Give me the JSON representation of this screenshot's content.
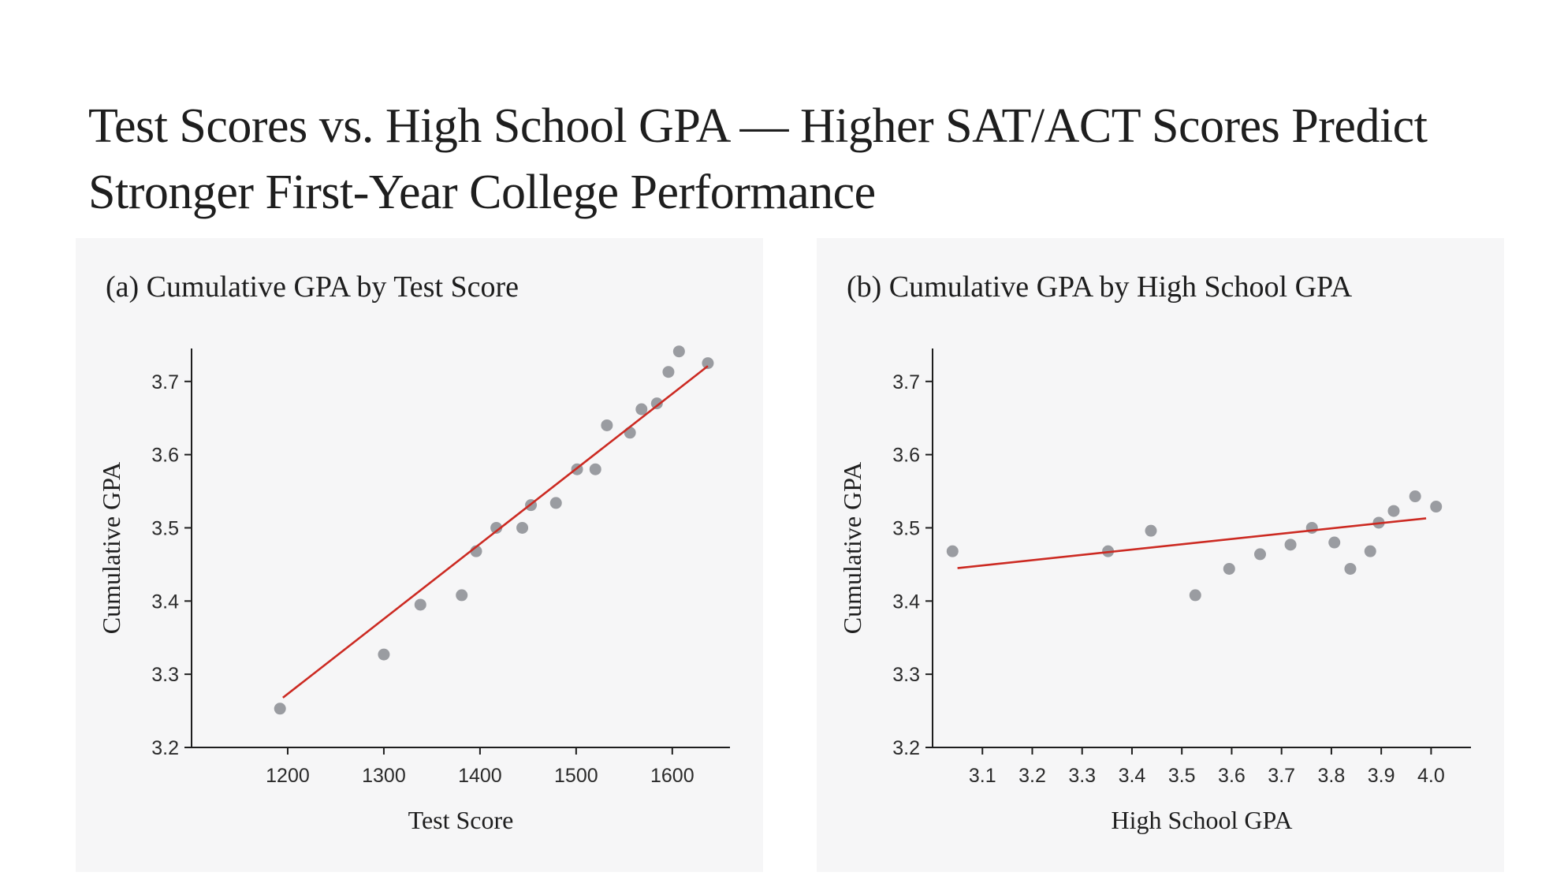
{
  "title": "Test Scores vs. High School GPA — Higher SAT/ACT Scores Predict Stronger First-Year College Performance",
  "colors": {
    "point": "#9a9ca1",
    "fit_line": "#cc2a22",
    "axis": "#1e1e1e",
    "panel_bg": "#f6f6f7"
  },
  "chart_data": [
    {
      "type": "scatter",
      "title": "(a) Cumulative GPA by Test Score",
      "xlabel": "Test Score",
      "ylabel": "Cumulative GPA",
      "xlim": [
        1100,
        1660
      ],
      "ylim": [
        3.2,
        3.745
      ],
      "xticks": [
        "1200",
        "1300",
        "1400",
        "1500",
        "1600"
      ],
      "yticks": [
        "3.2",
        "3.3",
        "3.4",
        "3.5",
        "3.6",
        "3.7"
      ],
      "points": [
        {
          "x": 1192,
          "y": 3.253
        },
        {
          "x": 1300,
          "y": 3.327
        },
        {
          "x": 1338,
          "y": 3.395
        },
        {
          "x": 1381,
          "y": 3.408
        },
        {
          "x": 1396,
          "y": 3.468
        },
        {
          "x": 1417,
          "y": 3.5
        },
        {
          "x": 1444,
          "y": 3.5
        },
        {
          "x": 1453,
          "y": 3.531
        },
        {
          "x": 1479,
          "y": 3.534
        },
        {
          "x": 1501,
          "y": 3.58
        },
        {
          "x": 1520,
          "y": 3.58
        },
        {
          "x": 1532,
          "y": 3.64
        },
        {
          "x": 1556,
          "y": 3.63
        },
        {
          "x": 1568,
          "y": 3.662
        },
        {
          "x": 1584,
          "y": 3.67
        },
        {
          "x": 1596,
          "y": 3.713
        },
        {
          "x": 1607,
          "y": 3.741
        },
        {
          "x": 1637,
          "y": 3.725
        }
      ],
      "fit_line": [
        {
          "x": 1195,
          "y": 3.268
        },
        {
          "x": 1637,
          "y": 3.721
        }
      ]
    },
    {
      "type": "scatter",
      "title": "(b) Cumulative GPA by High School GPA",
      "xlabel": "High School GPA",
      "ylabel": "Cumulative GPA",
      "xlim": [
        3.0,
        4.08
      ],
      "ylim": [
        3.2,
        3.745
      ],
      "xticks": [
        "3.1",
        "3.2",
        "3.3",
        "3.4",
        "3.5",
        "3.6",
        "3.7",
        "3.8",
        "3.9",
        "4.0"
      ],
      "yticks": [
        "3.2",
        "3.3",
        "3.4",
        "3.5",
        "3.6",
        "3.7"
      ],
      "points": [
        {
          "x": 3.04,
          "y": 3.468
        },
        {
          "x": 3.352,
          "y": 3.468
        },
        {
          "x": 3.438,
          "y": 3.496
        },
        {
          "x": 3.527,
          "y": 3.408
        },
        {
          "x": 3.595,
          "y": 3.444
        },
        {
          "x": 3.657,
          "y": 3.464
        },
        {
          "x": 3.718,
          "y": 3.477
        },
        {
          "x": 3.761,
          "y": 3.5
        },
        {
          "x": 3.806,
          "y": 3.48
        },
        {
          "x": 3.838,
          "y": 3.444
        },
        {
          "x": 3.878,
          "y": 3.468
        },
        {
          "x": 3.895,
          "y": 3.507
        },
        {
          "x": 3.925,
          "y": 3.523
        },
        {
          "x": 3.968,
          "y": 3.543
        },
        {
          "x": 4.01,
          "y": 3.529
        }
      ],
      "fit_line": [
        {
          "x": 3.05,
          "y": 3.445
        },
        {
          "x": 3.99,
          "y": 3.513
        }
      ]
    }
  ]
}
